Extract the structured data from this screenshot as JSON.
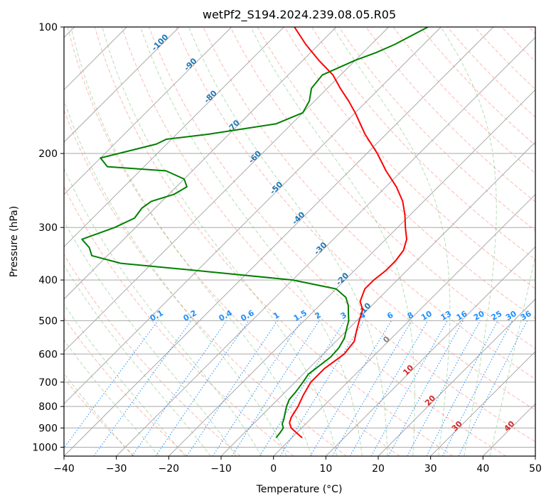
{
  "chart_data": {
    "type": "line",
    "title": "wetPf2_S194.2024.239.08.05.R05",
    "xlabel": "Temperature (°C)",
    "ylabel": "Pressure (hPa)",
    "xlim": [
      -40,
      50
    ],
    "ylim": [
      1050,
      100
    ],
    "y_scale": "log",
    "skew": true,
    "grid": true,
    "x_ticks": [
      -40,
      -30,
      -20,
      -10,
      0,
      10,
      20,
      30,
      40,
      50
    ],
    "y_ticks": [
      100,
      200,
      300,
      400,
      500,
      600,
      700,
      800,
      900,
      1000
    ],
    "series": [
      {
        "role": "temperature",
        "color": "#ff0000",
        "p": [
          950,
          925,
          900,
          875,
          850,
          800,
          750,
          700,
          650,
          600,
          560,
          530,
          500,
          470,
          450,
          420,
          400,
          380,
          360,
          340,
          320,
          300,
          280,
          260,
          240,
          220,
          200,
          180,
          160,
          150,
          140,
          130,
          120,
          110,
          100
        ],
        "t": [
          2.0,
          0.0,
          -2.0,
          -3.3,
          -4.0,
          -4.8,
          -6.0,
          -7.0,
          -7.0,
          -6.0,
          -6.5,
          -8.0,
          -9.5,
          -11.0,
          -13.0,
          -14.5,
          -14.5,
          -14.0,
          -14.0,
          -14.5,
          -16.0,
          -18.5,
          -21.0,
          -24.0,
          -28.0,
          -33.0,
          -38.0,
          -44.0,
          -50.0,
          -53.5,
          -57.5,
          -61.5,
          -67.0,
          -72.5,
          -78.0
        ]
      },
      {
        "role": "dewpoint",
        "color": "#008000",
        "p": [
          950,
          925,
          900,
          880,
          860,
          830,
          800,
          770,
          740,
          700,
          670,
          640,
          610,
          580,
          550,
          520,
          500,
          480,
          460,
          440,
          420,
          400,
          380,
          365,
          350,
          335,
          320,
          300,
          285,
          270,
          260,
          250,
          240,
          230,
          220,
          215,
          205,
          190,
          185,
          180,
          170,
          160,
          150,
          140,
          130,
          120,
          115,
          110,
          100
        ],
        "t": [
          -3.0,
          -3.2,
          -3.5,
          -4.5,
          -5.0,
          -6.0,
          -7.0,
          -7.8,
          -8.0,
          -8.5,
          -9.0,
          -8.5,
          -8.0,
          -8.2,
          -9.0,
          -10.5,
          -11.5,
          -13.0,
          -14.5,
          -16.5,
          -20.0,
          -30.0,
          -50.0,
          -66.0,
          -73.0,
          -75.0,
          -78.0,
          -74.0,
          -72.0,
          -72.5,
          -72.0,
          -69.0,
          -68.0,
          -70.0,
          -75.0,
          -87.0,
          -90.0,
          -82.0,
          -81.0,
          -74.0,
          -63.0,
          -60.0,
          -61.0,
          -63.0,
          -63.5,
          -60.0,
          -57.5,
          -55.5,
          -52.5
        ]
      }
    ],
    "reference_lines": {
      "dry_adiabats": {
        "color": "#fa8072",
        "style": "dashed"
      },
      "moist_adiabats": {
        "color": "#2ca02c",
        "style": "dashed"
      },
      "mixing_ratio": {
        "color": "#1e90ff",
        "style": "dotted",
        "labels": [
          "0.1",
          "0.2",
          "0.4",
          "0.6",
          "1",
          "1.5",
          "2",
          "3",
          "4",
          "6",
          "8",
          "10",
          "13",
          "16",
          "20",
          "25",
          "30",
          "36"
        ]
      },
      "isotherm_labels_blue": [
        "-100",
        "-90",
        "-80",
        "-70",
        "-60",
        "-50",
        "-40",
        "-30",
        "-20",
        "-10"
      ],
      "isotherm_label_gray": "0",
      "isotherm_labels_red": [
        "10",
        "20",
        "30",
        "40"
      ]
    }
  }
}
